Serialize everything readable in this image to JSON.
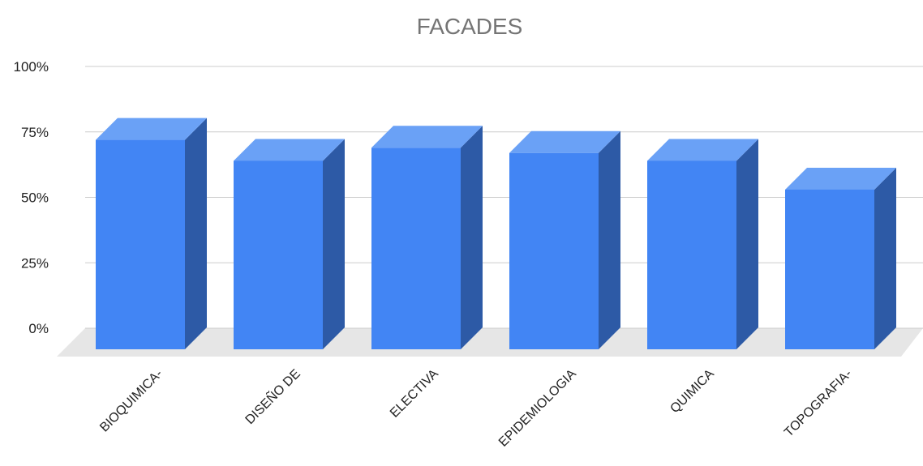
{
  "chart_data": {
    "type": "bar",
    "title": "FACADES",
    "xlabel": "",
    "ylabel": "",
    "categories": [
      "BIOQUIMICA-",
      "DISEÑO DE",
      "ELECTIVA",
      "EPIDEMIOLOGIA",
      "QUIMICA",
      "TOPOGRAFIA-"
    ],
    "values": [
      80,
      72,
      77,
      75,
      72,
      61
    ],
    "ylim": [
      0,
      100
    ],
    "yticks": [
      "0%",
      "25%",
      "50%",
      "75%",
      "100%"
    ],
    "ytick_values": [
      0,
      25,
      50,
      75,
      100
    ],
    "grid": true,
    "style": "3d",
    "legend": "none",
    "colors": {
      "bar_front": "#4285f4",
      "bar_top": "#6aa1f6",
      "bar_side": "#2d5aa6",
      "floor": "#e6e6e6",
      "grid": "#cccccc",
      "title": "#757575"
    }
  }
}
